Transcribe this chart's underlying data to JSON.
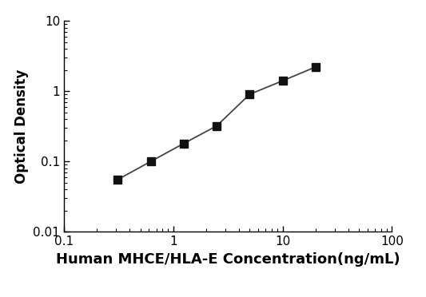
{
  "x": [
    0.31,
    0.625,
    1.25,
    2.5,
    5,
    10,
    20
  ],
  "y": [
    0.055,
    0.1,
    0.18,
    0.32,
    0.9,
    1.4,
    2.2
  ],
  "xlabel": "Human MHCE/HLA-E Concentration(ng/mL)",
  "ylabel": "Optical Density",
  "xlim": [
    0.1,
    100
  ],
  "ylim": [
    0.01,
    10
  ],
  "xticks": [
    0.1,
    1,
    10,
    100
  ],
  "yticks": [
    0.01,
    0.1,
    1,
    10
  ],
  "xtick_labels": [
    "0.1",
    "1",
    "10",
    "100"
  ],
  "ytick_labels": [
    "0.01",
    "0.1",
    "1",
    "10"
  ],
  "line_color": "#444444",
  "marker_color": "#111111",
  "marker": "s",
  "marker_size": 7,
  "line_width": 1.3,
  "background_color": "#ffffff",
  "xlabel_fontsize": 13,
  "ylabel_fontsize": 12,
  "xlabel_fontweight": "bold",
  "ylabel_fontweight": "bold",
  "tick_fontsize": 11
}
